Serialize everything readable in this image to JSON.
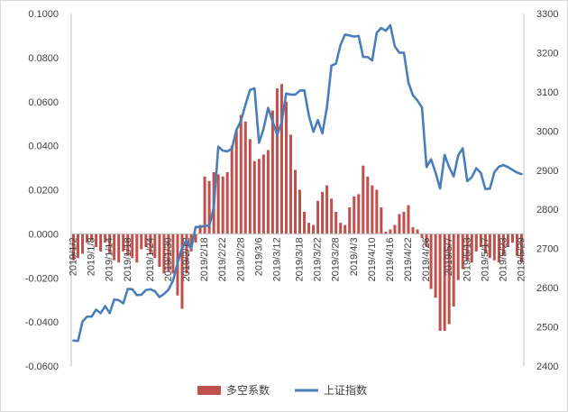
{
  "chart_data": {
    "type": "bar",
    "legend": {
      "placement": "bottom-center",
      "items": [
        {
          "label": "多空系数",
          "kind": "bar"
        },
        {
          "label": "上证指数",
          "kind": "line"
        }
      ]
    },
    "colors": {
      "bar": "#C0504D",
      "line": "#4A7EBB",
      "axis": "#bfbfbf",
      "text": "#404040"
    },
    "left_axis": {
      "min": -0.06,
      "max": 0.1,
      "step": 0.02,
      "tick_labels": [
        "-0.0600",
        "-0.0400",
        "-0.0200",
        "0.0000",
        "0.0200",
        "0.0400",
        "0.0600",
        "0.0800",
        "0.1000"
      ]
    },
    "right_axis": {
      "min": 2400,
      "max": 3300,
      "step": 100,
      "tick_labels": [
        "2400",
        "2500",
        "2600",
        "2700",
        "2800",
        "2900",
        "3000",
        "3100",
        "3200",
        "3300"
      ]
    },
    "x_tick_labels": [
      "2019/1/2",
      "2019/1/8",
      "2019/1/14",
      "2019/1/18",
      "2019/1/24",
      "2019/1/30",
      "2019/2/12",
      "2019/2/18",
      "2019/2/22",
      "2019/2/28",
      "2019/3/6",
      "2019/3/12",
      "2019/3/18",
      "2019/3/22",
      "2019/3/28",
      "2019/4/3",
      "2019/4/10",
      "2019/4/16",
      "2019/4/22",
      "2019/4/26",
      "2019/5/7",
      "2019/5/13",
      "2019/5/17",
      "2019/5/23",
      "2019/5/29"
    ],
    "grid": false,
    "series": [
      {
        "name": "多空系数",
        "kind": "bar",
        "axis": "left",
        "values": [
          -0.012,
          -0.011,
          -0.009,
          -0.004,
          -0.003,
          -0.006,
          -0.008,
          -0.004,
          -0.009,
          -0.012,
          -0.013,
          -0.008,
          -0.01,
          -0.011,
          -0.013,
          -0.007,
          -0.006,
          -0.009,
          -0.011,
          -0.015,
          -0.018,
          -0.017,
          -0.018,
          -0.028,
          -0.034,
          -0.018,
          -0.008,
          -0.004,
          0.004,
          0.026,
          0.024,
          0.028,
          0.027,
          0.026,
          0.028,
          0.04,
          0.047,
          0.054,
          0.051,
          0.043,
          0.033,
          0.034,
          0.036,
          0.038,
          0.056,
          0.066,
          0.068,
          0.06,
          0.045,
          0.029,
          0.02,
          0.01,
          0.005,
          0.004,
          0.015,
          0.019,
          0.022,
          0.016,
          0.01,
          0.005,
          0.004,
          0.012,
          0.017,
          0.018,
          0.031,
          0.026,
          0.022,
          0.02,
          0.012,
          0.001,
          0.002,
          0.004,
          0.009,
          0.01,
          0.013,
          0.003,
          0.002,
          -0.002,
          -0.006,
          -0.025,
          -0.029,
          -0.044,
          -0.044,
          -0.041,
          -0.033,
          -0.021,
          -0.016,
          -0.012,
          -0.013,
          -0.008,
          -0.006,
          -0.009,
          -0.011,
          -0.012,
          -0.013,
          -0.01,
          -0.006,
          -0.004,
          -0.01,
          -0.013
        ]
      },
      {
        "name": "上证指数",
        "kind": "line",
        "axis": "right",
        "values": [
          2465,
          2464,
          2514,
          2526,
          2526,
          2544,
          2535,
          2553,
          2535,
          2570,
          2568,
          2560,
          2597,
          2596,
          2581,
          2582,
          2594,
          2596,
          2591,
          2576,
          2584,
          2595,
          2618,
          2663,
          2702,
          2721,
          2700,
          2755,
          2755,
          2758,
          2758,
          2805,
          2960,
          2950,
          2948,
          2955,
          3003,
          3026,
          3067,
          3105,
          3109,
          2970,
          3006,
          3059,
          3025,
          2990,
          3022,
          3096,
          3093,
          3093,
          3103,
          3104,
          3040,
          2998,
          3028,
          2994,
          3061,
          3167,
          3172,
          3220,
          3246,
          3244,
          3241,
          3243,
          3189,
          3189,
          3180,
          3251,
          3263,
          3256,
          3270,
          3216,
          3200,
          3200,
          3124,
          3091,
          3078,
          3060,
          2908,
          2928,
          2894,
          2853,
          2939,
          2908,
          2884,
          2938,
          2956,
          2872,
          2882,
          2905,
          2893,
          2852,
          2853,
          2895,
          2909,
          2913,
          2908,
          2901,
          2894,
          2890
        ]
      }
    ]
  }
}
